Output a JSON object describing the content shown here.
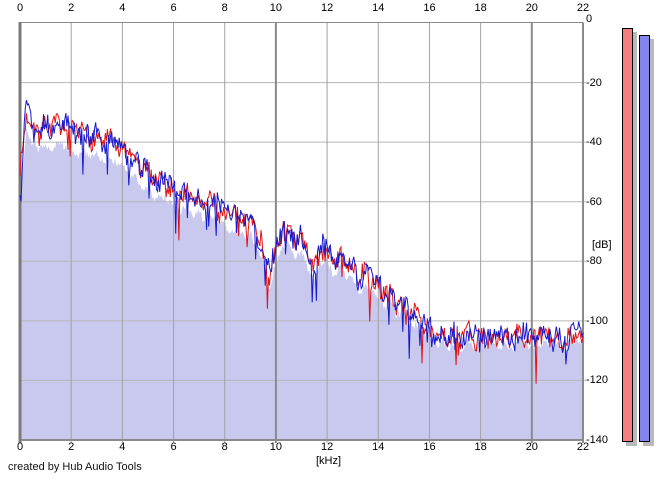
{
  "credit": "created by Hub Audio Tools",
  "chart_data": {
    "type": "line",
    "title": "",
    "xlabel": "[kHz]",
    "ylabel": "[dB]",
    "xlim": [
      0,
      22
    ],
    "ylim": [
      -140,
      0
    ],
    "grid": true,
    "x_tick_labels": [
      "0",
      "2",
      "4",
      "6",
      "8",
      "10",
      "12",
      "14",
      "16",
      "18",
      "20",
      "22"
    ],
    "y_tick_labels": [
      "0",
      "-20",
      "-40",
      "-60",
      "-80",
      "-100",
      "-120",
      "-140"
    ],
    "frequencies_khz": [
      0,
      0.25,
      0.5,
      0.75,
      1,
      1.25,
      1.5,
      1.75,
      2,
      2.25,
      2.5,
      2.75,
      3,
      3.25,
      3.5,
      3.75,
      4,
      4.25,
      4.5,
      4.75,
      5,
      5.25,
      5.5,
      5.75,
      6,
      6.25,
      6.5,
      6.75,
      7,
      7.25,
      7.5,
      7.75,
      8,
      8.25,
      8.5,
      8.75,
      9,
      9.25,
      9.5,
      9.75,
      10,
      10.25,
      10.5,
      10.75,
      11,
      11.25,
      11.5,
      11.75,
      12,
      12.25,
      12.5,
      12.75,
      13,
      13.25,
      13.5,
      13.75,
      14,
      14.25,
      14.5,
      14.75,
      15,
      15.25,
      15.5,
      15.75,
      16,
      16.25,
      16.5,
      16.75,
      17,
      17.25,
      17.5,
      17.75,
      18,
      18.25,
      18.5,
      18.75,
      19,
      19.25,
      19.5,
      19.75,
      20,
      20.25,
      20.5,
      20.75,
      21,
      21.25,
      21.5,
      21.75,
      22
    ],
    "series": [
      {
        "name": "spectrum-red",
        "color": "#e11414",
        "values_db": [
          -50,
          -31,
          -33.5,
          -36.5,
          -34,
          -35,
          -32.5,
          -37,
          -36,
          -38,
          -36,
          -40,
          -37.5,
          -40,
          -38,
          -43,
          -42,
          -45.5,
          -45,
          -50.5,
          -49.5,
          -52.5,
          -51,
          -56,
          -55,
          -57.5,
          -56,
          -60.5,
          -58.5,
          -61,
          -59,
          -64,
          -63,
          -65,
          -63,
          -67.5,
          -65.5,
          -70,
          -74,
          -87,
          -76,
          -69.5,
          -69,
          -75.5,
          -71.5,
          -78,
          -81,
          -78,
          -76,
          -80.5,
          -77,
          -82.5,
          -81.5,
          -86,
          -82,
          -88,
          -88,
          -91.5,
          -90,
          -95.5,
          -93.5,
          -97,
          -97,
          -103,
          -102,
          -105,
          -103,
          -107,
          -104.5,
          -106,
          -102,
          -108,
          -105,
          -106,
          -104.5,
          -106.5,
          -105.5,
          -106,
          -102,
          -107.5,
          -106,
          -106,
          -104,
          -106.5,
          -105,
          -107,
          -103,
          -106.5,
          -105
        ]
      },
      {
        "name": "spectrum-blue",
        "color": "#1818cd",
        "values_db": [
          -58,
          -25,
          -34,
          -35,
          -33,
          -37,
          -34.5,
          -33,
          -35,
          -38.5,
          -36.5,
          -38.5,
          -36.5,
          -42,
          -40,
          -39,
          -41,
          -46,
          -45.5,
          -49,
          -48.5,
          -54.5,
          -53,
          -52,
          -54,
          -58,
          -56.5,
          -59,
          -57.5,
          -63,
          -61,
          -60,
          -62,
          -65.5,
          -63.5,
          -66,
          -64.5,
          -72,
          -76,
          -83,
          -75,
          -70,
          -69.5,
          -74,
          -70.5,
          -80,
          -83,
          -74,
          -75,
          -81,
          -77.5,
          -81,
          -80.5,
          -88,
          -84,
          -84,
          -87,
          -92,
          -90.5,
          -94,
          -92.5,
          -99,
          -99,
          -99,
          -101,
          -105.5,
          -103.5,
          -105.5,
          -103.5,
          -108,
          -104,
          -104,
          -104,
          -106.5,
          -105,
          -105,
          -104.5,
          -108,
          -104,
          -103.5,
          -105,
          -106.5,
          -104.5,
          -105,
          -104,
          -109,
          -105,
          -102.5,
          -104
        ]
      }
    ],
    "fill_area": {
      "color": "#c9c9f0"
    },
    "meters": [
      {
        "name": "level-meter-red",
        "color": "#f28080",
        "value_db": -1.7
      },
      {
        "name": "level-meter-blue",
        "color": "#8484ec",
        "value_db": -4.0
      }
    ],
    "colors": {
      "grid_minor_vertical": "#a2a2a2",
      "grid_major_vertical": "#8a8a8a",
      "grid_horizontal": "#b7b7b7",
      "plot_border_left": "#7a7a7a",
      "meter_shadow": "#b9b9b9",
      "background": "#ffffff"
    }
  }
}
